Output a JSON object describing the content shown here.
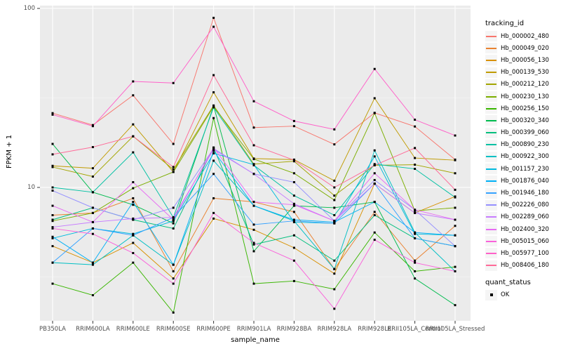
{
  "chart_data": {
    "type": "line",
    "title": "",
    "xlabel": "sample_name",
    "ylabel": "FPKM + 1",
    "y_scale": "log10",
    "ylim": [
      1.8,
      104
    ],
    "y_major_ticks": [
      10,
      100
    ],
    "y_minor_gridlines": [
      3.162,
      31.62
    ],
    "grid": true,
    "panel_background": "#ebebeb",
    "gridline_color": "#ffffff",
    "point_color": "#000000",
    "legend_position": "right",
    "categories": [
      "PB350LA",
      "RRIM600LA",
      "RRIM600LE",
      "RRIM600SE",
      "RRIM600PE",
      "RRIM901LA",
      "RRIM928BA",
      "RRIM928LA",
      "RRIM928LE",
      "RRII105LA_Control",
      "RRII105LA_Stressed"
    ],
    "series": [
      {
        "name": "Hb_000002_480",
        "color": "#F8766D",
        "values": [
          26.0,
          22.3,
          32.7,
          17.5,
          88.6,
          21.6,
          22.0,
          17.4,
          26.1,
          21.9,
          14.3
        ]
      },
      {
        "name": "Hb_000049_020",
        "color": "#EA8331",
        "values": [
          7.0,
          7.2,
          8.7,
          3.4,
          8.7,
          8.3,
          7.3,
          3.5,
          7.3,
          3.9,
          6.1
        ]
      },
      {
        "name": "Hb_000056_130",
        "color": "#D89000",
        "values": [
          4.7,
          3.8,
          4.9,
          3.1,
          6.7,
          5.8,
          4.6,
          3.3,
          10.5,
          7.2,
          8.9
        ]
      },
      {
        "name": "Hb_000139_530",
        "color": "#C09B00",
        "values": [
          13.2,
          12.8,
          22.5,
          12.2,
          34.0,
          14.5,
          14.3,
          10.9,
          31.5,
          14.6,
          14.2
        ]
      },
      {
        "name": "Hb_000212_120",
        "color": "#A3A500",
        "values": [
          13.0,
          11.5,
          19.3,
          12.6,
          28.7,
          13.5,
          14.0,
          9.0,
          13.3,
          13.4,
          12.0
        ]
      },
      {
        "name": "Hb_000230_130",
        "color": "#7CAE00",
        "values": [
          6.5,
          7.2,
          9.9,
          12.2,
          28.3,
          14.4,
          12.0,
          8.5,
          26.0,
          7.4,
          7.7
        ]
      },
      {
        "name": "Hb_000256_150",
        "color": "#39B600",
        "values": [
          2.9,
          2.5,
          3.8,
          2.0,
          24.4,
          2.9,
          3.0,
          2.7,
          5.6,
          3.4,
          3.6
        ]
      },
      {
        "name": "Hb_000320_340",
        "color": "#00BB4E",
        "values": [
          17.5,
          9.4,
          8.0,
          6.3,
          28.5,
          4.4,
          7.9,
          7.7,
          8.3,
          3.1,
          2.2
        ]
      },
      {
        "name": "Hb_000399_060",
        "color": "#00BF7D",
        "values": [
          6.6,
          7.7,
          6.6,
          5.9,
          16.7,
          4.8,
          5.4,
          3.9,
          7.0,
          5.2,
          4.7
        ]
      },
      {
        "name": "Hb_000890_230",
        "color": "#00C1A3",
        "values": [
          10.0,
          9.4,
          15.7,
          6.8,
          28.0,
          13.3,
          9.0,
          7.0,
          13.5,
          12.7,
          8.8
        ]
      },
      {
        "name": "Hb_000922_300",
        "color": "#00BFC4",
        "values": [
          3.8,
          3.7,
          5.4,
          3.7,
          14.1,
          7.9,
          6.5,
          3.5,
          16.1,
          5.6,
          3.4
        ]
      },
      {
        "name": "Hb_001157_230",
        "color": "#00BADE",
        "values": [
          5.2,
          5.9,
          5.5,
          6.5,
          15.5,
          13.4,
          6.4,
          6.3,
          14.9,
          5.5,
          5.4
        ]
      },
      {
        "name": "Hb_001876_040",
        "color": "#00B0F6",
        "values": [
          5.3,
          3.8,
          8.3,
          3.7,
          16.0,
          7.9,
          6.6,
          6.4,
          8.3,
          5.6,
          5.4
        ]
      },
      {
        "name": "Hb_001946_180",
        "color": "#35A2FF",
        "values": [
          3.8,
          5.9,
          5.4,
          6.8,
          11.9,
          6.2,
          6.5,
          6.3,
          10.5,
          5.2,
          4.7
        ]
      },
      {
        "name": "Hb_002226_080",
        "color": "#9590FF",
        "values": [
          9.6,
          7.7,
          6.6,
          7.7,
          16.5,
          11.9,
          10.7,
          6.5,
          11.0,
          7.5,
          4.7
        ]
      },
      {
        "name": "Hb_002289_060",
        "color": "#C77CFF",
        "values": [
          6.0,
          6.4,
          6.7,
          6.8,
          16.3,
          11.9,
          8.1,
          6.5,
          10.5,
          7.2,
          6.6
        ]
      },
      {
        "name": "Hb_002400_320",
        "color": "#E76BF3",
        "values": [
          7.9,
          6.4,
          10.7,
          6.6,
          16.7,
          8.3,
          8.0,
          6.5,
          12.0,
          7.5,
          6.6
        ]
      },
      {
        "name": "Hb_005015_060",
        "color": "#FA62DB",
        "values": [
          5.9,
          5.5,
          4.3,
          2.9,
          7.2,
          4.9,
          3.9,
          2.1,
          5.1,
          3.8,
          3.4
        ]
      },
      {
        "name": "Hb_005977_100",
        "color": "#FF61C9",
        "values": [
          25.5,
          22.0,
          39.1,
          38.3,
          79.0,
          30.3,
          23.5,
          21.1,
          45.9,
          23.9,
          19.5
        ]
      },
      {
        "name": "Hb_008406_180",
        "color": "#FF6A98",
        "values": [
          15.3,
          16.8,
          19.3,
          13.0,
          42.4,
          17.2,
          14.2,
          10.0,
          13.3,
          16.6,
          9.7
        ]
      }
    ],
    "legend": {
      "title": "tracking_id",
      "quant_title": "quant_status",
      "quant_label": "OK"
    }
  }
}
